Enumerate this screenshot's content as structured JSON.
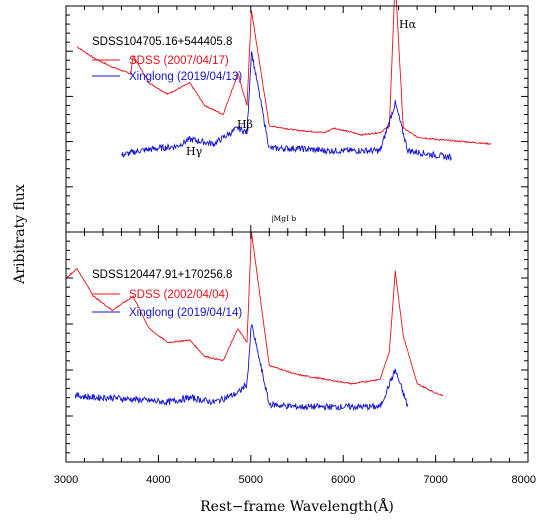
{
  "chart_data": {
    "type": "line",
    "xlabel": "Rest−frame Wavelength(Å)",
    "ylabel": "Aribitraty flux",
    "xlim": [
      3000,
      8000
    ],
    "xticks": [
      "3000",
      "4000",
      "5000",
      "6000",
      "7000",
      "8000"
    ],
    "panels": [
      {
        "title": "SDSS104705.16+544405.8",
        "annotations": [
          {
            "text": "Hα",
            "x": 6563
          },
          {
            "text": "Hβ",
            "x": 4861
          },
          {
            "text": "Hγ",
            "x": 4340
          },
          {
            "text": "|MgI b",
            "x": 5175
          }
        ],
        "series": [
          {
            "name": "SDSS (2007/04/17)",
            "color": "#e8141e",
            "x": [
              3120,
              3300,
              3500,
              3700,
              3727,
              3900,
              4100,
              4340,
              4500,
              4700,
              4861,
              4959,
              5007,
              5200,
              5500,
              5800,
              5900,
              6200,
              6400,
              6500,
              6563,
              6650,
              6800,
              7000,
              7300,
              7600
            ],
            "y": [
              0.82,
              0.77,
              0.73,
              0.7,
              0.78,
              0.66,
              0.61,
              0.66,
              0.56,
              0.52,
              0.7,
              0.56,
              0.98,
              0.47,
              0.45,
              0.44,
              0.46,
              0.43,
              0.44,
              0.47,
              1.12,
              0.46,
              0.42,
              0.41,
              0.4,
              0.39
            ]
          },
          {
            "name": "Xinglong (2019/04/13)",
            "color": "#1414d2",
            "x": [
              3600,
              3800,
              4000,
              4200,
              4340,
              4600,
              4861,
              4959,
              5007,
              5200,
              5500,
              5800,
              6100,
              6400,
              6563,
              6700,
              7000,
              7170
            ],
            "y": [
              0.34,
              0.36,
              0.37,
              0.38,
              0.41,
              0.39,
              0.46,
              0.44,
              0.8,
              0.37,
              0.37,
              0.36,
              0.36,
              0.36,
              0.57,
              0.36,
              0.34,
              0.33
            ]
          }
        ]
      },
      {
        "title": "SDSS120447.91+170256.8",
        "series": [
          {
            "name": "SDSS (2002/04/04)",
            "color": "#e8141e",
            "x": [
              3000,
              3120,
              3300,
              3500,
              3727,
              3900,
              4100,
              4340,
              4500,
              4700,
              4861,
              4959,
              5007,
              5200,
              5500,
              5800,
              6100,
              6400,
              6500,
              6563,
              6650,
              6800,
              7000,
              7080
            ],
            "y": [
              0.8,
              0.84,
              0.72,
              0.66,
              0.72,
              0.58,
              0.52,
              0.53,
              0.46,
              0.44,
              0.58,
              0.52,
              1.0,
              0.42,
              0.38,
              0.36,
              0.34,
              0.36,
              0.48,
              0.83,
              0.55,
              0.34,
              0.3,
              0.29
            ]
          },
          {
            "name": "Xinglong (2019/04/14)",
            "color": "#1414d2",
            "x": [
              3100,
              3300,
              3500,
              3800,
              4100,
              4340,
              4600,
              4861,
              4959,
              5007,
              5200,
              5500,
              5800,
              6100,
              6400,
              6563,
              6700
            ],
            "y": [
              0.29,
              0.28,
              0.28,
              0.27,
              0.26,
              0.28,
              0.26,
              0.3,
              0.34,
              0.6,
              0.25,
              0.24,
              0.24,
              0.24,
              0.24,
              0.4,
              0.24
            ]
          }
        ]
      }
    ]
  }
}
